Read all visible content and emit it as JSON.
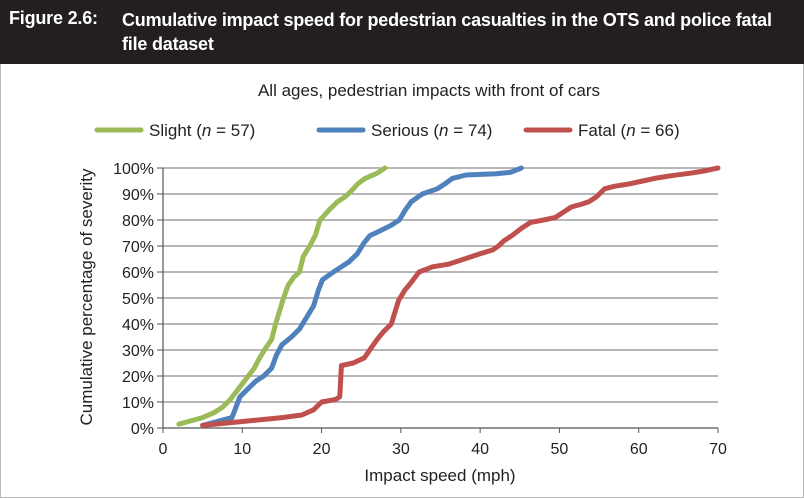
{
  "figure": {
    "label": "Figure 2.6:",
    "title": "Cumulative impact speed for pedestrian casualties in the OTS and police fatal file dataset"
  },
  "chart_data": {
    "type": "line",
    "title": "All ages, pedestrian impacts with front of cars",
    "xlabel": "Impact speed (mph)",
    "ylabel": "Cumulative percentage of severity",
    "xlim": [
      0,
      70
    ],
    "ylim": [
      0,
      100
    ],
    "x_ticks": [
      "0",
      "10",
      "20",
      "30",
      "40",
      "50",
      "60",
      "70"
    ],
    "y_ticks": [
      "0%",
      "10%",
      "20%",
      "30%",
      "40%",
      "50%",
      "60%",
      "70%",
      "80%",
      "90%",
      "100%"
    ],
    "grid": "horizontal",
    "legend_position": "top",
    "series": [
      {
        "legend_name": "Slight",
        "legend_n": "57",
        "color": "#9bbb59",
        "points": [
          [
            2,
            1.5
          ],
          [
            5,
            4
          ],
          [
            6.5,
            6
          ],
          [
            7.5,
            8
          ],
          [
            8.5,
            11
          ],
          [
            9.5,
            15
          ],
          [
            10.5,
            19
          ],
          [
            11.5,
            23
          ],
          [
            12.2,
            27
          ],
          [
            13,
            31
          ],
          [
            13.7,
            34
          ],
          [
            14.2,
            40
          ],
          [
            14.7,
            45
          ],
          [
            15.2,
            50
          ],
          [
            15.8,
            55
          ],
          [
            16.5,
            58
          ],
          [
            17.2,
            60
          ],
          [
            17.7,
            66
          ],
          [
            18.5,
            70
          ],
          [
            19.2,
            74
          ],
          [
            19.8,
            80
          ],
          [
            21,
            84
          ],
          [
            22,
            87
          ],
          [
            23,
            89
          ],
          [
            24,
            92
          ],
          [
            24.6,
            94
          ],
          [
            25.5,
            96
          ],
          [
            27,
            98
          ],
          [
            28,
            100
          ]
        ]
      },
      {
        "legend_name": "Serious",
        "legend_n": "74",
        "color": "#4f81bd",
        "points": [
          [
            5,
            1
          ],
          [
            8.7,
            4
          ],
          [
            9.7,
            12
          ],
          [
            10.7,
            15
          ],
          [
            11.7,
            18
          ],
          [
            12.7,
            20
          ],
          [
            13.7,
            23
          ],
          [
            14.3,
            28
          ],
          [
            15,
            32
          ],
          [
            16.2,
            35
          ],
          [
            17.2,
            38
          ],
          [
            18.2,
            43
          ],
          [
            19,
            47
          ],
          [
            19.6,
            53
          ],
          [
            20.1,
            57
          ],
          [
            21.5,
            60
          ],
          [
            22.5,
            62
          ],
          [
            23.5,
            64
          ],
          [
            24.5,
            67
          ],
          [
            25.3,
            71
          ],
          [
            26.1,
            74
          ],
          [
            27.5,
            76
          ],
          [
            28.8,
            78
          ],
          [
            29.8,
            80
          ],
          [
            30.6,
            84
          ],
          [
            31.3,
            87
          ],
          [
            32.7,
            90
          ],
          [
            34.6,
            92
          ],
          [
            35.6,
            94
          ],
          [
            36.5,
            96
          ],
          [
            38.2,
            97.3
          ],
          [
            42,
            97.8
          ],
          [
            43.8,
            98.3
          ],
          [
            45.2,
            100
          ]
        ]
      },
      {
        "legend_name": "Fatal",
        "legend_n": "66",
        "color": "#c0504d",
        "points": [
          [
            5,
            1
          ],
          [
            10,
            2.5
          ],
          [
            15,
            4
          ],
          [
            17.5,
            5
          ],
          [
            19,
            7
          ],
          [
            20,
            10
          ],
          [
            21.8,
            11
          ],
          [
            22.3,
            12
          ],
          [
            22.5,
            24
          ],
          [
            24,
            25
          ],
          [
            25.4,
            27
          ],
          [
            26.3,
            31
          ],
          [
            27,
            34
          ],
          [
            27.8,
            37
          ],
          [
            28.8,
            40
          ],
          [
            29.7,
            49
          ],
          [
            30.5,
            53
          ],
          [
            31.3,
            56
          ],
          [
            32.3,
            60
          ],
          [
            34,
            62
          ],
          [
            36,
            63
          ],
          [
            38,
            65
          ],
          [
            40,
            67
          ],
          [
            41.6,
            68.5
          ],
          [
            42.3,
            70
          ],
          [
            43,
            72
          ],
          [
            44,
            74
          ],
          [
            45.3,
            77
          ],
          [
            46.3,
            79
          ],
          [
            48,
            80
          ],
          [
            49.5,
            81
          ],
          [
            50.5,
            83
          ],
          [
            51.5,
            85
          ],
          [
            52.7,
            86
          ],
          [
            53.7,
            87
          ],
          [
            54.7,
            89
          ],
          [
            55.7,
            92
          ],
          [
            57,
            93
          ],
          [
            59,
            94
          ],
          [
            60.5,
            95
          ],
          [
            62,
            96
          ],
          [
            64,
            97
          ],
          [
            66.5,
            98
          ],
          [
            68.5,
            99
          ],
          [
            70,
            100
          ]
        ]
      }
    ]
  }
}
